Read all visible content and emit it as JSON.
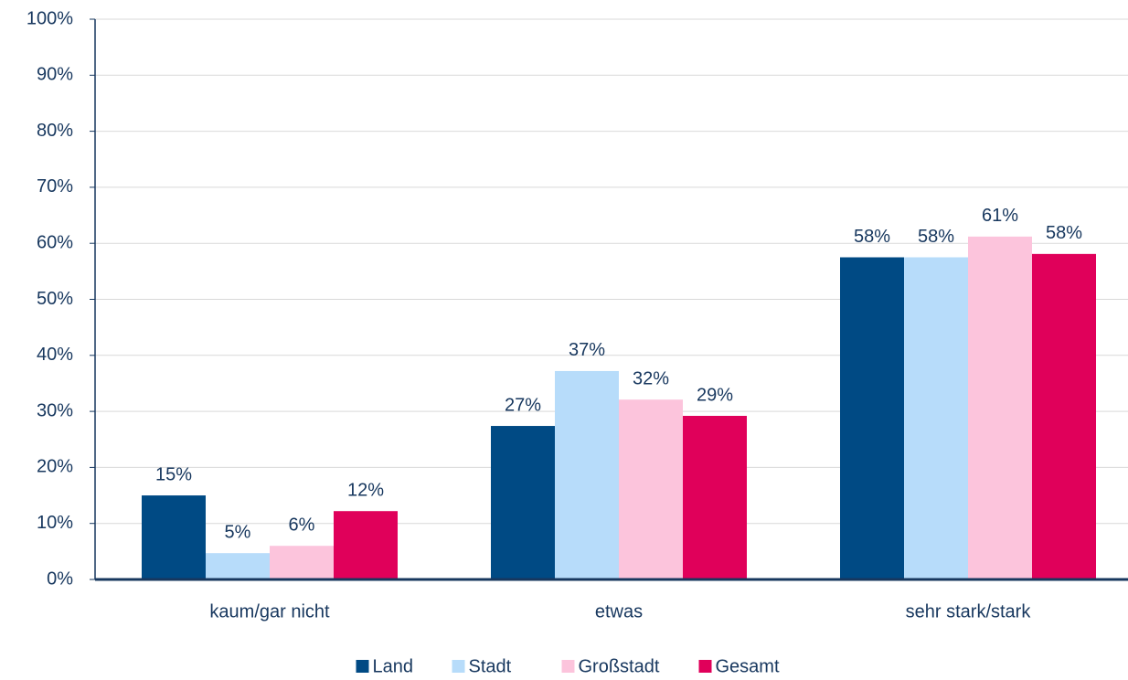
{
  "chart_data": {
    "type": "bar",
    "categories": [
      "kaum/gar nicht",
      "etwas",
      "sehr stark/stark"
    ],
    "series": [
      {
        "name": "Land",
        "color": "#004a84",
        "values": [
          15,
          27.4,
          57.5
        ],
        "value_labels": [
          "15%",
          "27%",
          "58%"
        ]
      },
      {
        "name": "Stadt",
        "color": "#b7dcfa",
        "values": [
          4.7,
          37.2,
          57.5
        ],
        "value_labels": [
          "5%",
          "37%",
          "58%"
        ]
      },
      {
        "name": "Großstadt",
        "color": "#fcc4dc",
        "values": [
          6,
          32.1,
          61.2
        ],
        "value_labels": [
          "6%",
          "32%",
          "61%"
        ]
      },
      {
        "name": "Gesamt",
        "color": "#e0005a",
        "values": [
          12.2,
          29.2,
          58.1
        ],
        "value_labels": [
          "12%",
          "29%",
          "58%"
        ]
      }
    ],
    "ylim": [
      0,
      100
    ],
    "yticks": [
      {
        "value": 0,
        "label": "0%"
      },
      {
        "value": 10,
        "label": "10%"
      },
      {
        "value": 20,
        "label": "20%"
      },
      {
        "value": 30,
        "label": "30%"
      },
      {
        "value": 40,
        "label": "40%"
      },
      {
        "value": 50,
        "label": "50%"
      },
      {
        "value": 60,
        "label": "60%"
      },
      {
        "value": 70,
        "label": "70%"
      },
      {
        "value": 80,
        "label": "80%"
      },
      {
        "value": 90,
        "label": "90%"
      },
      {
        "value": 100,
        "label": "100%"
      }
    ],
    "grid": true,
    "legend": "bottom"
  }
}
